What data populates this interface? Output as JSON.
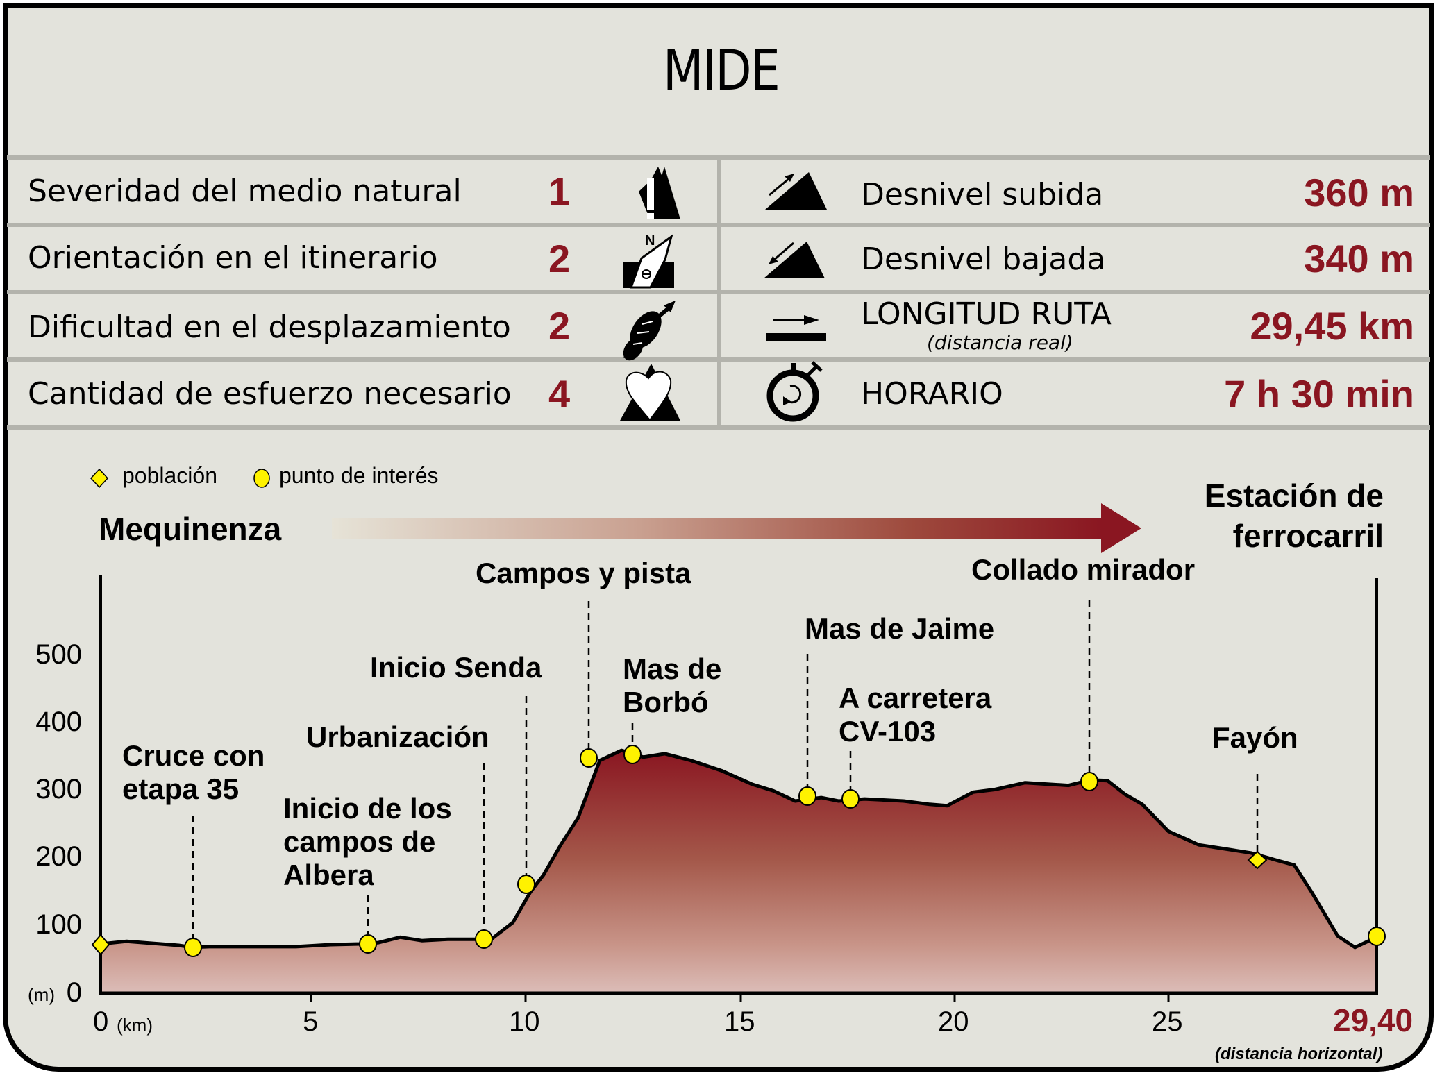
{
  "title": "MIDE",
  "mide_rows": [
    {
      "label": "Severidad del medio natural",
      "value": "1",
      "icon": "mountain-warning-icon"
    },
    {
      "label": "Orientación en el itinerario",
      "value": "2",
      "icon": "compass-north-icon"
    },
    {
      "label": "Dificultad en el desplazamiento",
      "value": "2",
      "icon": "boot-sole-icon"
    },
    {
      "label": "Cantidad de esfuerzo necesario",
      "value": "4",
      "icon": "heart-mountain-icon"
    }
  ],
  "stats_rows": [
    {
      "label": "Desnivel subida",
      "sublabel": "",
      "value": "360 m",
      "icon": "ascent-icon"
    },
    {
      "label": "Desnivel bajada",
      "sublabel": "",
      "value": "340 m",
      "icon": "descent-icon"
    },
    {
      "label": "LONGITUD RUTA",
      "sublabel": "(distancia real)",
      "value": "29,45 km",
      "icon": "distance-arrow-icon"
    },
    {
      "label": "HORARIO",
      "sublabel": "",
      "value": "7 h 30 min",
      "icon": "stopwatch-icon"
    }
  ],
  "legend": {
    "town": "población",
    "poi": "punto de interés"
  },
  "start_place": "Mequinenza",
  "end_place": [
    "Estación de",
    "ferrocarril"
  ],
  "colors": {
    "accent": "#8a1621",
    "marker": "#fff200",
    "background": "#e3e3dc",
    "divider": "#b3b3ac"
  },
  "chart_data": {
    "type": "area",
    "title": "Perfil de elevación",
    "xlabel": "(km)",
    "ylabel": "(m)",
    "xlim": [
      0,
      29.4
    ],
    "ylim": [
      0,
      500
    ],
    "x_ticks": [
      "0",
      "5",
      "10",
      "15",
      "20",
      "25",
      "29,40"
    ],
    "y_ticks": [
      "0",
      "100",
      "200",
      "300",
      "400",
      "500"
    ],
    "x_end_note": "(distancia horizontal)",
    "grid": false,
    "profile": {
      "x": [
        0,
        0.6,
        1.2,
        1.8,
        2.1,
        2.5,
        3.5,
        4.5,
        5.3,
        6.0,
        6.4,
        6.9,
        7.4,
        8.0,
        8.6,
        9.0,
        9.5,
        9.9,
        10.2,
        10.6,
        11.0,
        11.5,
        12.0,
        12.5,
        13.0,
        13.6,
        14.3,
        15.0,
        15.5,
        16.0,
        16.6,
        17.0,
        17.6,
        18.5,
        19.1,
        19.5,
        20.1,
        20.6,
        21.3,
        22.3,
        22.8,
        23.2,
        23.6,
        24.0,
        24.6,
        25.3,
        25.8,
        26.5,
        27.1,
        27.5,
        27.9,
        28.5,
        28.9,
        29.4
      ],
      "y": [
        73,
        77,
        74,
        71,
        68,
        69,
        69,
        69,
        72,
        73,
        75,
        83,
        78,
        80,
        80,
        80,
        105,
        150,
        175,
        220,
        260,
        345,
        360,
        350,
        355,
        345,
        330,
        310,
        300,
        285,
        290,
        285,
        288,
        285,
        280,
        278,
        298,
        302,
        312,
        308,
        316,
        315,
        295,
        280,
        240,
        220,
        215,
        208,
        197,
        190,
        150,
        85,
        68,
        83
      ]
    },
    "points": [
      {
        "name": "Mequinenza",
        "km": 0.0,
        "elev": 73,
        "kind": "población"
      },
      {
        "name": "Cruce con etapa 35",
        "km": 2.1,
        "elev": 68,
        "kind": "punto de interés"
      },
      {
        "name": "Inicio de los campos de Albera",
        "km": 6.4,
        "elev": 73,
        "kind": "punto de interés"
      },
      {
        "name": "Urbanización",
        "km": 9.0,
        "elev": 80,
        "kind": "punto de interés"
      },
      {
        "name": "Inicio Senda",
        "km": 10.0,
        "elev": 163,
        "kind": "punto de interés"
      },
      {
        "name": "Campos y pista",
        "km": 11.5,
        "elev": 347,
        "kind": "punto de interés"
      },
      {
        "name": "Mas de Borbó",
        "km": 12.5,
        "elev": 353,
        "kind": "punto de interés"
      },
      {
        "name": "Mas de Jaime",
        "km": 16.6,
        "elev": 292,
        "kind": "punto de interés"
      },
      {
        "name": "A carretera CV-103",
        "km": 17.6,
        "elev": 288,
        "kind": "punto de interés"
      },
      {
        "name": "Collado mirador",
        "km": 23.3,
        "elev": 313,
        "kind": "punto de interés"
      },
      {
        "name": "Fayón",
        "km": 27.1,
        "elev": 197,
        "kind": "población"
      },
      {
        "name": "Estación de ferrocarril",
        "km": 29.4,
        "elev": 83,
        "kind": "punto de interés"
      }
    ],
    "annotations": [
      "Mequinenza → Estación de ferrocarril"
    ]
  },
  "poi_labels": {
    "cruce": [
      "Cruce con",
      "etapa 35"
    ],
    "albera": [
      "Inicio de los",
      "campos de",
      "Albera"
    ],
    "urbanizacion": [
      "Urbanización"
    ],
    "senda": [
      "Inicio Senda"
    ],
    "campos": [
      "Campos y pista"
    ],
    "borbo": [
      "Mas de",
      "Borbó"
    ],
    "jaime": [
      "Mas de Jaime"
    ],
    "carretera": [
      "A carretera",
      "CV-103"
    ],
    "collado": [
      "Collado mirador"
    ],
    "fayon": [
      "Fayón"
    ]
  },
  "axis": {
    "y_unit": "(m)",
    "x_unit": "(km)",
    "y_labels": [
      "500",
      "400",
      "300",
      "200",
      "100",
      "0"
    ],
    "x_labels": [
      "0",
      "5",
      "10",
      "15",
      "20",
      "25"
    ],
    "x_end": "29,40",
    "x_end_note": "(distancia horizontal)"
  }
}
